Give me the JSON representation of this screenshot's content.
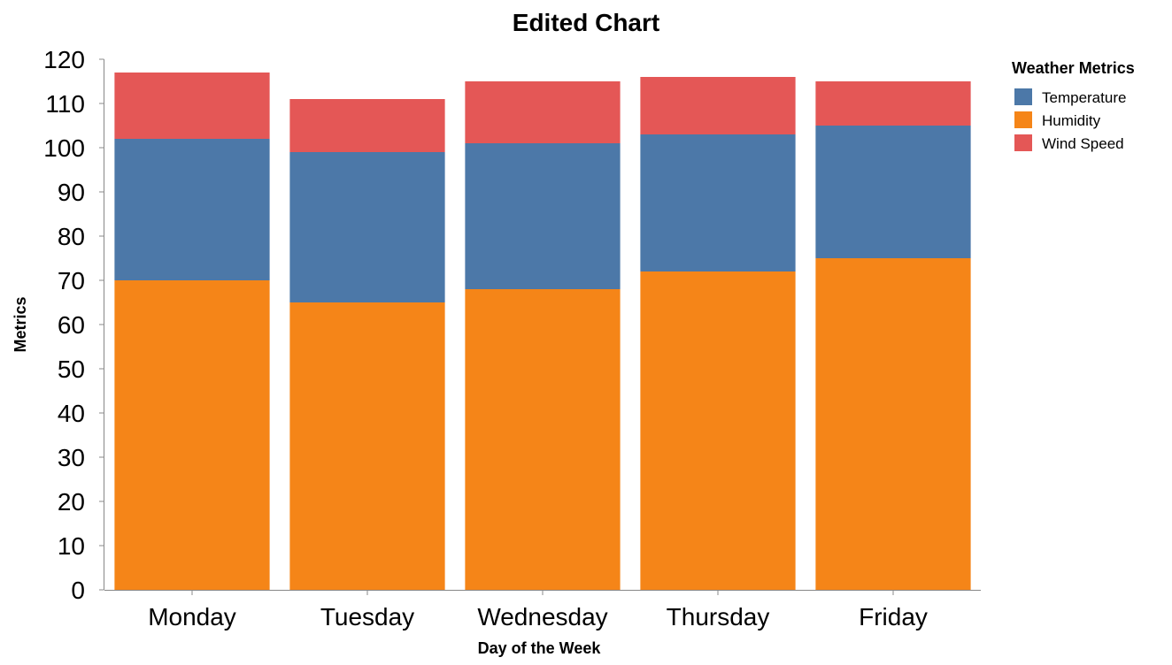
{
  "chart_data": {
    "type": "bar",
    "stacked": true,
    "title": "Edited Chart",
    "xlabel": "Day of the Week",
    "ylabel": "Metrics",
    "categories": [
      "Monday",
      "Tuesday",
      "Wednesday",
      "Thursday",
      "Friday"
    ],
    "ylim": [
      0,
      120
    ],
    "yticks": [
      0,
      10,
      20,
      30,
      40,
      50,
      60,
      70,
      80,
      90,
      100,
      110,
      120
    ],
    "grid": false,
    "legend": {
      "title": "Weather Metrics",
      "placement": "right",
      "entries": [
        "Temperature",
        "Humidity",
        "Wind Speed"
      ]
    },
    "series": [
      {
        "name": "Humidity",
        "color": "#f58518",
        "values": [
          70,
          65,
          68,
          72,
          75
        ]
      },
      {
        "name": "Temperature",
        "color": "#4c78a8",
        "values": [
          32,
          34,
          33,
          31,
          30
        ]
      },
      {
        "name": "Wind Speed",
        "color": "#e45756",
        "values": [
          15,
          12,
          14,
          13,
          10
        ]
      }
    ]
  }
}
